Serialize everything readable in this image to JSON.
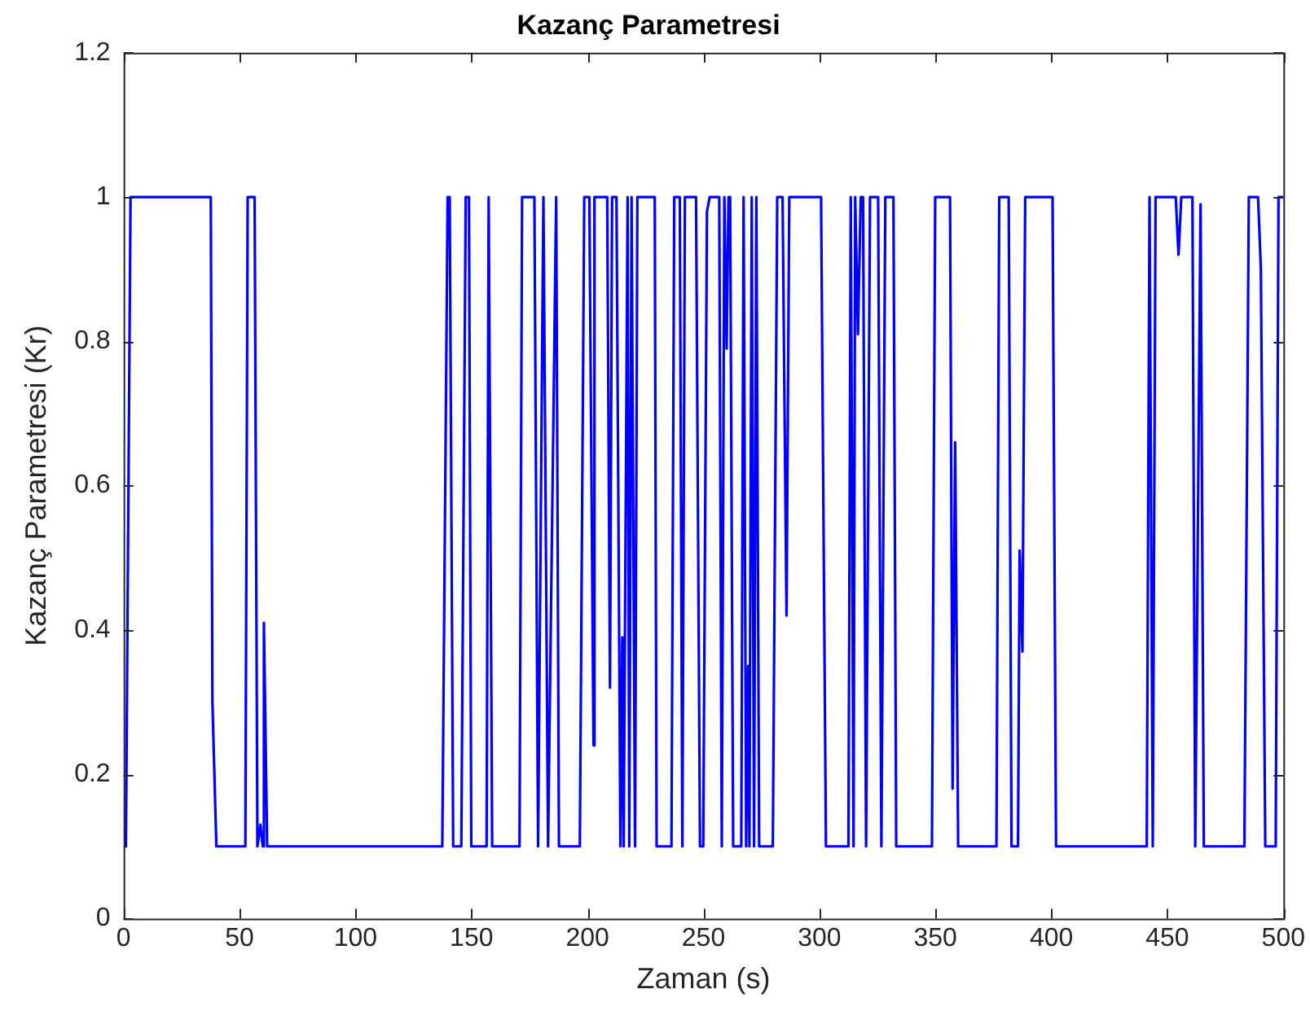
{
  "chart_data": {
    "type": "line",
    "title": "Kazanç Parametresi",
    "xlabel": "Zaman (s)",
    "ylabel": "Kazanç Parametresi (Kr)",
    "x": [
      0,
      1,
      3,
      37.6,
      38.3,
      40,
      52.5,
      53.5,
      56.5,
      57.7,
      59,
      60,
      60.5,
      61.9,
      137.4,
      139.7,
      140.6,
      142.1,
      145.6,
      147.5,
      148.9,
      149.9,
      156.5,
      157.4,
      158.9,
      170.7,
      171.8,
      177.1,
      178.7,
      181,
      183,
      186.5,
      187.7,
      196.7,
      198.6,
      200.8,
      202.6,
      203,
      208.5,
      209.7,
      210.6,
      212.5,
      214.2,
      215,
      215.6,
      217.3,
      218,
      219,
      220.5,
      221.5,
      229,
      229.8,
      236.2,
      237.4,
      239.8,
      240.9,
      242,
      246.8,
      248.5,
      249.9,
      251.5,
      252.7,
      256.8,
      257.9,
      259,
      260,
      260.8,
      261.5,
      262.8,
      266.3,
      267.3,
      268.4,
      269.3,
      269.8,
      270.8,
      271.8,
      272.8,
      274,
      279.9,
      281.8,
      284.1,
      285.8,
      287,
      300.7,
      302.8,
      312.5,
      313.5,
      314.7,
      315.4,
      316.6,
      317.8,
      318.8,
      320.1,
      321.8,
      325.3,
      326.7,
      328.4,
      331.9,
      333.1,
      348.5,
      349.9,
      356.3,
      357.4,
      358.5,
      359.8,
      376.3,
      377.5,
      381.6,
      382.8,
      385.6,
      386.3,
      387.5,
      388.7,
      400.5,
      402,
      441.1,
      442.3,
      443.7,
      444.9,
      453.6,
      454.8,
      456,
      460.8,
      462,
      464.3,
      465.7,
      483.2,
      485.1,
      489.1,
      490.3,
      492.2,
      496.7,
      497.9,
      500
    ],
    "series": [
      {
        "color": "#0000ff",
        "values": [
          0.1,
          0.1,
          1,
          1,
          0.3,
          0.1,
          0.1,
          1,
          1,
          0.1,
          0.13,
          0.1,
          0.41,
          0.1,
          0.1,
          1,
          1,
          0.1,
          0.1,
          1,
          1,
          0.1,
          0.1,
          1,
          0.1,
          0.1,
          1,
          1,
          0.1,
          1,
          0.1,
          1,
          0.1,
          0.1,
          1,
          1,
          0.24,
          1,
          1,
          0.32,
          1,
          1,
          0.1,
          0.39,
          0.1,
          1,
          0.1,
          1,
          0.1,
          1,
          1,
          0.1,
          0.1,
          1,
          1,
          0.1,
          1,
          1,
          0.1,
          0.1,
          0.98,
          1,
          1,
          0.1,
          1,
          0.79,
          1,
          1,
          0.1,
          0.1,
          1,
          0.1,
          0.35,
          0.1,
          1,
          0.1,
          1,
          0.1,
          0.1,
          1,
          1,
          0.42,
          1,
          1,
          0.1,
          0.1,
          1,
          0.1,
          1,
          0.81,
          1,
          1,
          0.1,
          1,
          1,
          0.1,
          1,
          1,
          0.1,
          0.1,
          1,
          1,
          0.18,
          0.66,
          0.1,
          0.1,
          1,
          1,
          0.1,
          0.1,
          0.51,
          0.37,
          1,
          1,
          0.1,
          0.1,
          1,
          0.1,
          1,
          1,
          0.92,
          1,
          1,
          0.1,
          0.99,
          0.1,
          0.1,
          1,
          1,
          0.9,
          0.1,
          0.1,
          1,
          1
        ]
      }
    ],
    "xlim": [
      0,
      500
    ],
    "xticks": [
      0,
      50,
      100,
      150,
      200,
      250,
      300,
      350,
      400,
      450,
      500
    ],
    "ylim": [
      0,
      1.2
    ],
    "yticks": [
      0,
      0.2,
      0.4,
      0.6,
      0.8,
      1,
      1.2
    ],
    "grid": false,
    "legend": false,
    "marker": "none",
    "line_style": "solid"
  }
}
